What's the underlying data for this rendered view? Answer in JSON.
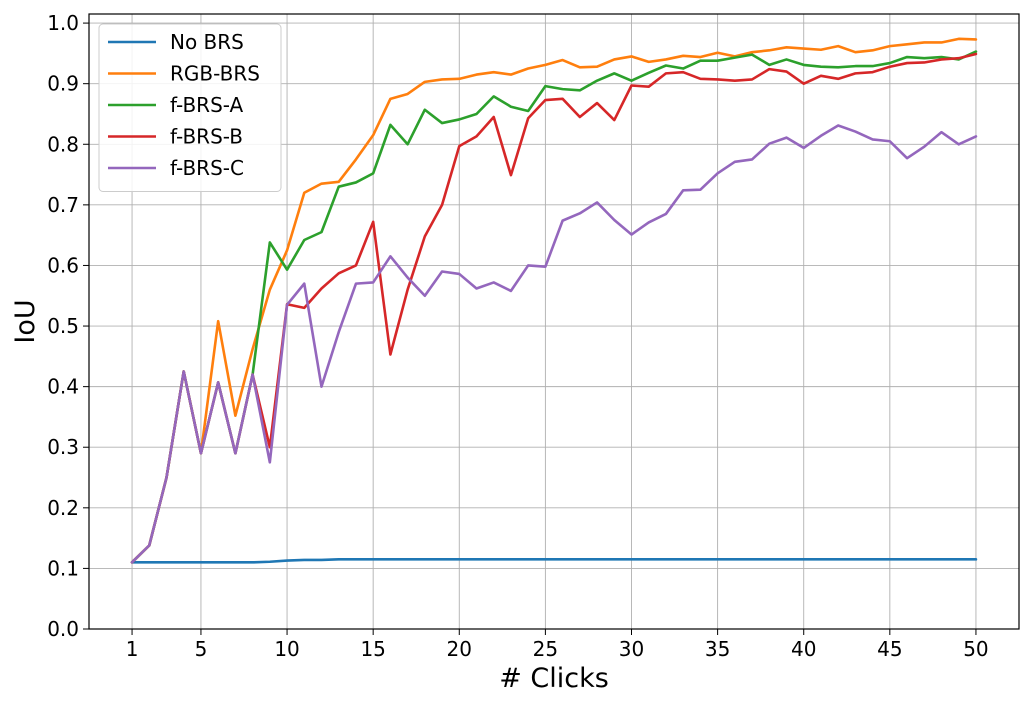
{
  "chart_data": {
    "type": "line",
    "title": "",
    "xlabel": "# Clicks",
    "ylabel": "IoU",
    "xlim": [
      1,
      50
    ],
    "ylim": [
      0.0,
      1.0
    ],
    "grid": true,
    "legend_position": "top-left",
    "x_ticks": [
      1,
      5,
      10,
      15,
      20,
      25,
      30,
      35,
      40,
      45,
      50
    ],
    "x_tick_labels": [
      "1",
      "5",
      "10",
      "15",
      "20",
      "25",
      "30",
      "35",
      "40",
      "45",
      "50"
    ],
    "y_ticks": [
      0.0,
      0.1,
      0.2,
      0.3,
      0.4,
      0.5,
      0.6,
      0.7,
      0.8,
      0.9,
      1.0
    ],
    "y_tick_labels": [
      "0.0",
      "0.1",
      "0.2",
      "0.3",
      "0.4",
      "0.5",
      "0.6",
      "0.7",
      "0.8",
      "0.9",
      "1.0"
    ],
    "x": [
      1,
      2,
      3,
      4,
      5,
      6,
      7,
      8,
      9,
      10,
      11,
      12,
      13,
      14,
      15,
      16,
      17,
      18,
      19,
      20,
      21,
      22,
      23,
      24,
      25,
      26,
      27,
      28,
      29,
      30,
      31,
      32,
      33,
      34,
      35,
      36,
      37,
      38,
      39,
      40,
      41,
      42,
      43,
      44,
      45,
      46,
      47,
      48,
      49,
      50
    ],
    "series": [
      {
        "name": "No BRS",
        "color": "#1f77b4",
        "values": [
          0.11,
          0.11,
          0.11,
          0.11,
          0.11,
          0.11,
          0.11,
          0.11,
          0.111,
          0.113,
          0.114,
          0.114,
          0.115,
          0.115,
          0.115,
          0.115,
          0.115,
          0.115,
          0.115,
          0.115,
          0.115,
          0.115,
          0.115,
          0.115,
          0.115,
          0.115,
          0.115,
          0.115,
          0.115,
          0.115,
          0.115,
          0.115,
          0.115,
          0.115,
          0.115,
          0.115,
          0.115,
          0.115,
          0.115,
          0.115,
          0.115,
          0.115,
          0.115,
          0.115,
          0.115,
          0.115,
          0.115,
          0.115,
          0.115,
          0.115
        ]
      },
      {
        "name": "RGB-BRS",
        "color": "#ff7f0e",
        "values": [
          0.11,
          0.138,
          0.25,
          0.425,
          0.29,
          0.508,
          0.352,
          0.462,
          0.56,
          0.625,
          0.72,
          0.735,
          0.738,
          0.775,
          0.815,
          0.875,
          0.883,
          0.903,
          0.907,
          0.908,
          0.915,
          0.919,
          0.915,
          0.925,
          0.931,
          0.939,
          0.927,
          0.928,
          0.94,
          0.945,
          0.936,
          0.94,
          0.946,
          0.944,
          0.951,
          0.945,
          0.952,
          0.955,
          0.96,
          0.958,
          0.956,
          0.962,
          0.952,
          0.955,
          0.962,
          0.965,
          0.968,
          0.968,
          0.974,
          0.973
        ]
      },
      {
        "name": "f-BRS-A",
        "color": "#2ca02c",
        "values": [
          0.11,
          0.138,
          0.25,
          0.425,
          0.29,
          0.407,
          0.29,
          0.42,
          0.638,
          0.593,
          0.642,
          0.655,
          0.73,
          0.737,
          0.752,
          0.832,
          0.8,
          0.857,
          0.835,
          0.841,
          0.85,
          0.879,
          0.862,
          0.855,
          0.896,
          0.891,
          0.889,
          0.905,
          0.917,
          0.905,
          0.918,
          0.93,
          0.925,
          0.938,
          0.938,
          0.943,
          0.948,
          0.931,
          0.94,
          0.931,
          0.928,
          0.927,
          0.929,
          0.929,
          0.934,
          0.944,
          0.942,
          0.944,
          0.94,
          0.953
        ]
      },
      {
        "name": "f-BRS-B",
        "color": "#d62728",
        "values": [
          0.11,
          0.138,
          0.25,
          0.425,
          0.29,
          0.407,
          0.29,
          0.42,
          0.3,
          0.536,
          0.53,
          0.562,
          0.587,
          0.6,
          0.672,
          0.453,
          0.56,
          0.648,
          0.7,
          0.797,
          0.813,
          0.845,
          0.749,
          0.843,
          0.873,
          0.875,
          0.845,
          0.868,
          0.84,
          0.897,
          0.895,
          0.917,
          0.919,
          0.908,
          0.907,
          0.905,
          0.907,
          0.924,
          0.92,
          0.9,
          0.913,
          0.908,
          0.917,
          0.919,
          0.928,
          0.934,
          0.935,
          0.94,
          0.942,
          0.949
        ]
      },
      {
        "name": "f-BRS-C",
        "color": "#9467bd",
        "values": [
          0.11,
          0.138,
          0.25,
          0.425,
          0.29,
          0.407,
          0.29,
          0.42,
          0.275,
          0.535,
          0.57,
          0.4,
          0.49,
          0.57,
          0.572,
          0.615,
          0.58,
          0.55,
          0.59,
          0.586,
          0.562,
          0.572,
          0.558,
          0.6,
          0.598,
          0.674,
          0.686,
          0.704,
          0.675,
          0.651,
          0.671,
          0.685,
          0.724,
          0.725,
          0.752,
          0.771,
          0.775,
          0.801,
          0.811,
          0.794,
          0.814,
          0.831,
          0.821,
          0.808,
          0.805,
          0.777,
          0.796,
          0.82,
          0.8,
          0.813
        ]
      }
    ]
  }
}
